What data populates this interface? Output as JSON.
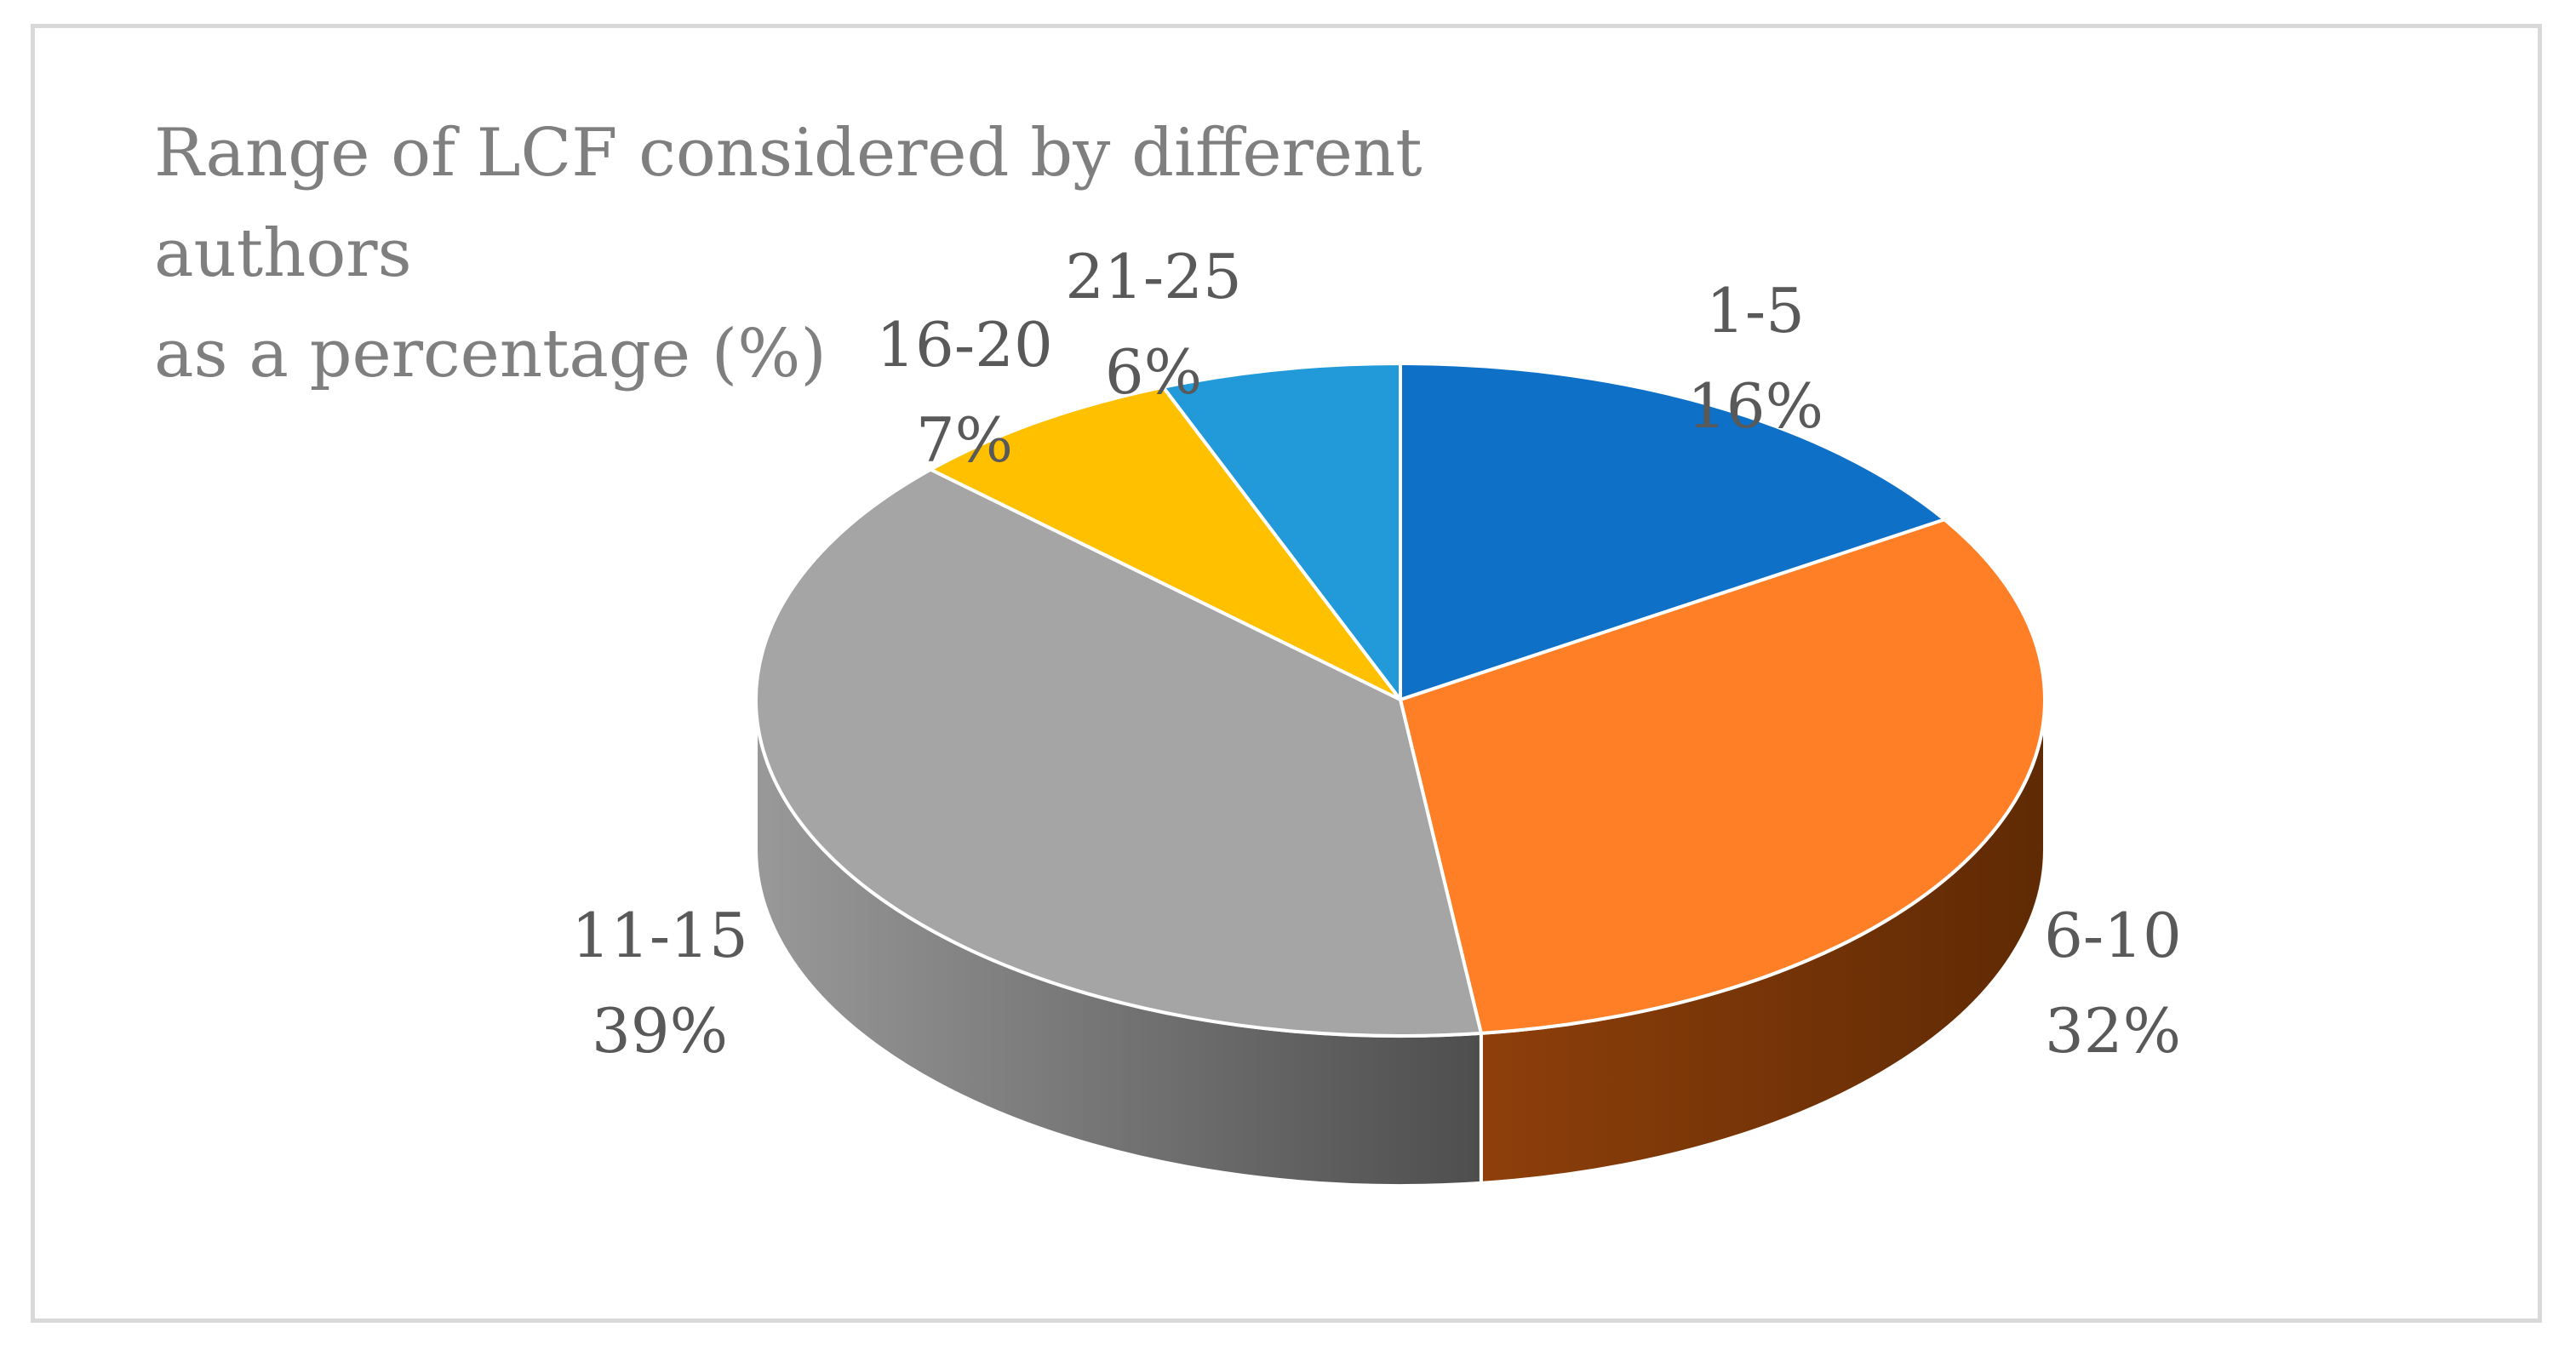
{
  "chart_data": {
    "type": "pie",
    "style": "3d",
    "title": "Range of LCF considered by different authors as a percentage (%)",
    "title_lines": [
      "Range of LCF considered by different authors",
      "as a percentage (%)"
    ],
    "unit": "%",
    "legend": "none",
    "slices": [
      {
        "category": "1-5",
        "value": 16,
        "label": "16%",
        "color": "#0E70C6"
      },
      {
        "category": "6-10",
        "value": 32,
        "label": "32%",
        "color": "#FF7F27"
      },
      {
        "category": "11-15",
        "value": 39,
        "label": "39%",
        "color": "#A5A5A5"
      },
      {
        "category": "16-20",
        "value": 7,
        "label": "7%",
        "color": "#FFC000"
      },
      {
        "category": "21-25",
        "value": 6,
        "label": "6%",
        "color": "#2299D8"
      }
    ]
  }
}
